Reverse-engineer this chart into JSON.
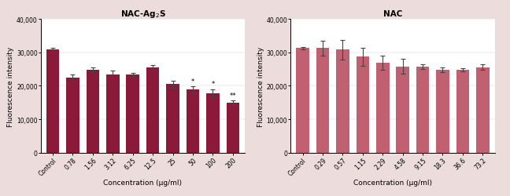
{
  "left": {
    "title_use_sub": true,
    "categories": [
      "Control",
      "0.78",
      "1.56",
      "3.12",
      "6.25",
      "12.5",
      "25",
      "50",
      "100",
      "200"
    ],
    "values": [
      30900,
      22400,
      24800,
      23500,
      23300,
      25600,
      20500,
      18900,
      17800,
      15000
    ],
    "errors": [
      500,
      900,
      700,
      1100,
      600,
      700,
      1000,
      900,
      1200,
      600
    ],
    "bar_color": "#8B1A3A",
    "sig_labels": {
      "7": "*",
      "8": "*",
      "9": "**"
    },
    "ylabel": "Fluorescence intensity",
    "xlabel": "Concentration (μg/ml)",
    "ylim": [
      0,
      40000
    ],
    "yticks": [
      0,
      10000,
      20000,
      30000,
      40000
    ],
    "ytick_labels": [
      "0",
      "10,000",
      "20,000",
      "30,000",
      "40,000"
    ]
  },
  "right": {
    "title": "NAC",
    "categories": [
      "Control",
      "0.29",
      "0.57",
      "1.15",
      "2.29",
      "4.58",
      "9.15",
      "18.3",
      "36.6",
      "73.2"
    ],
    "values": [
      31300,
      31300,
      30800,
      28700,
      26900,
      25800,
      25800,
      24900,
      24800,
      25600
    ],
    "errors": [
      300,
      2200,
      2900,
      2700,
      2000,
      2200,
      700,
      700,
      500,
      900
    ],
    "bar_color": "#C06070",
    "ylabel": "Fluorescence intensity",
    "xlabel": "Concentration (μg/ml)",
    "ylim": [
      0,
      40000
    ],
    "yticks": [
      0,
      10000,
      20000,
      30000,
      40000
    ],
    "ytick_labels": [
      "0",
      "10,000",
      "20,000",
      "30,000",
      "40,000"
    ]
  },
  "background_color": "#ecdcdc",
  "plot_bg_color": "#ffffff",
  "fig_width": 6.48,
  "fig_height": 2.51,
  "dpi": 100
}
